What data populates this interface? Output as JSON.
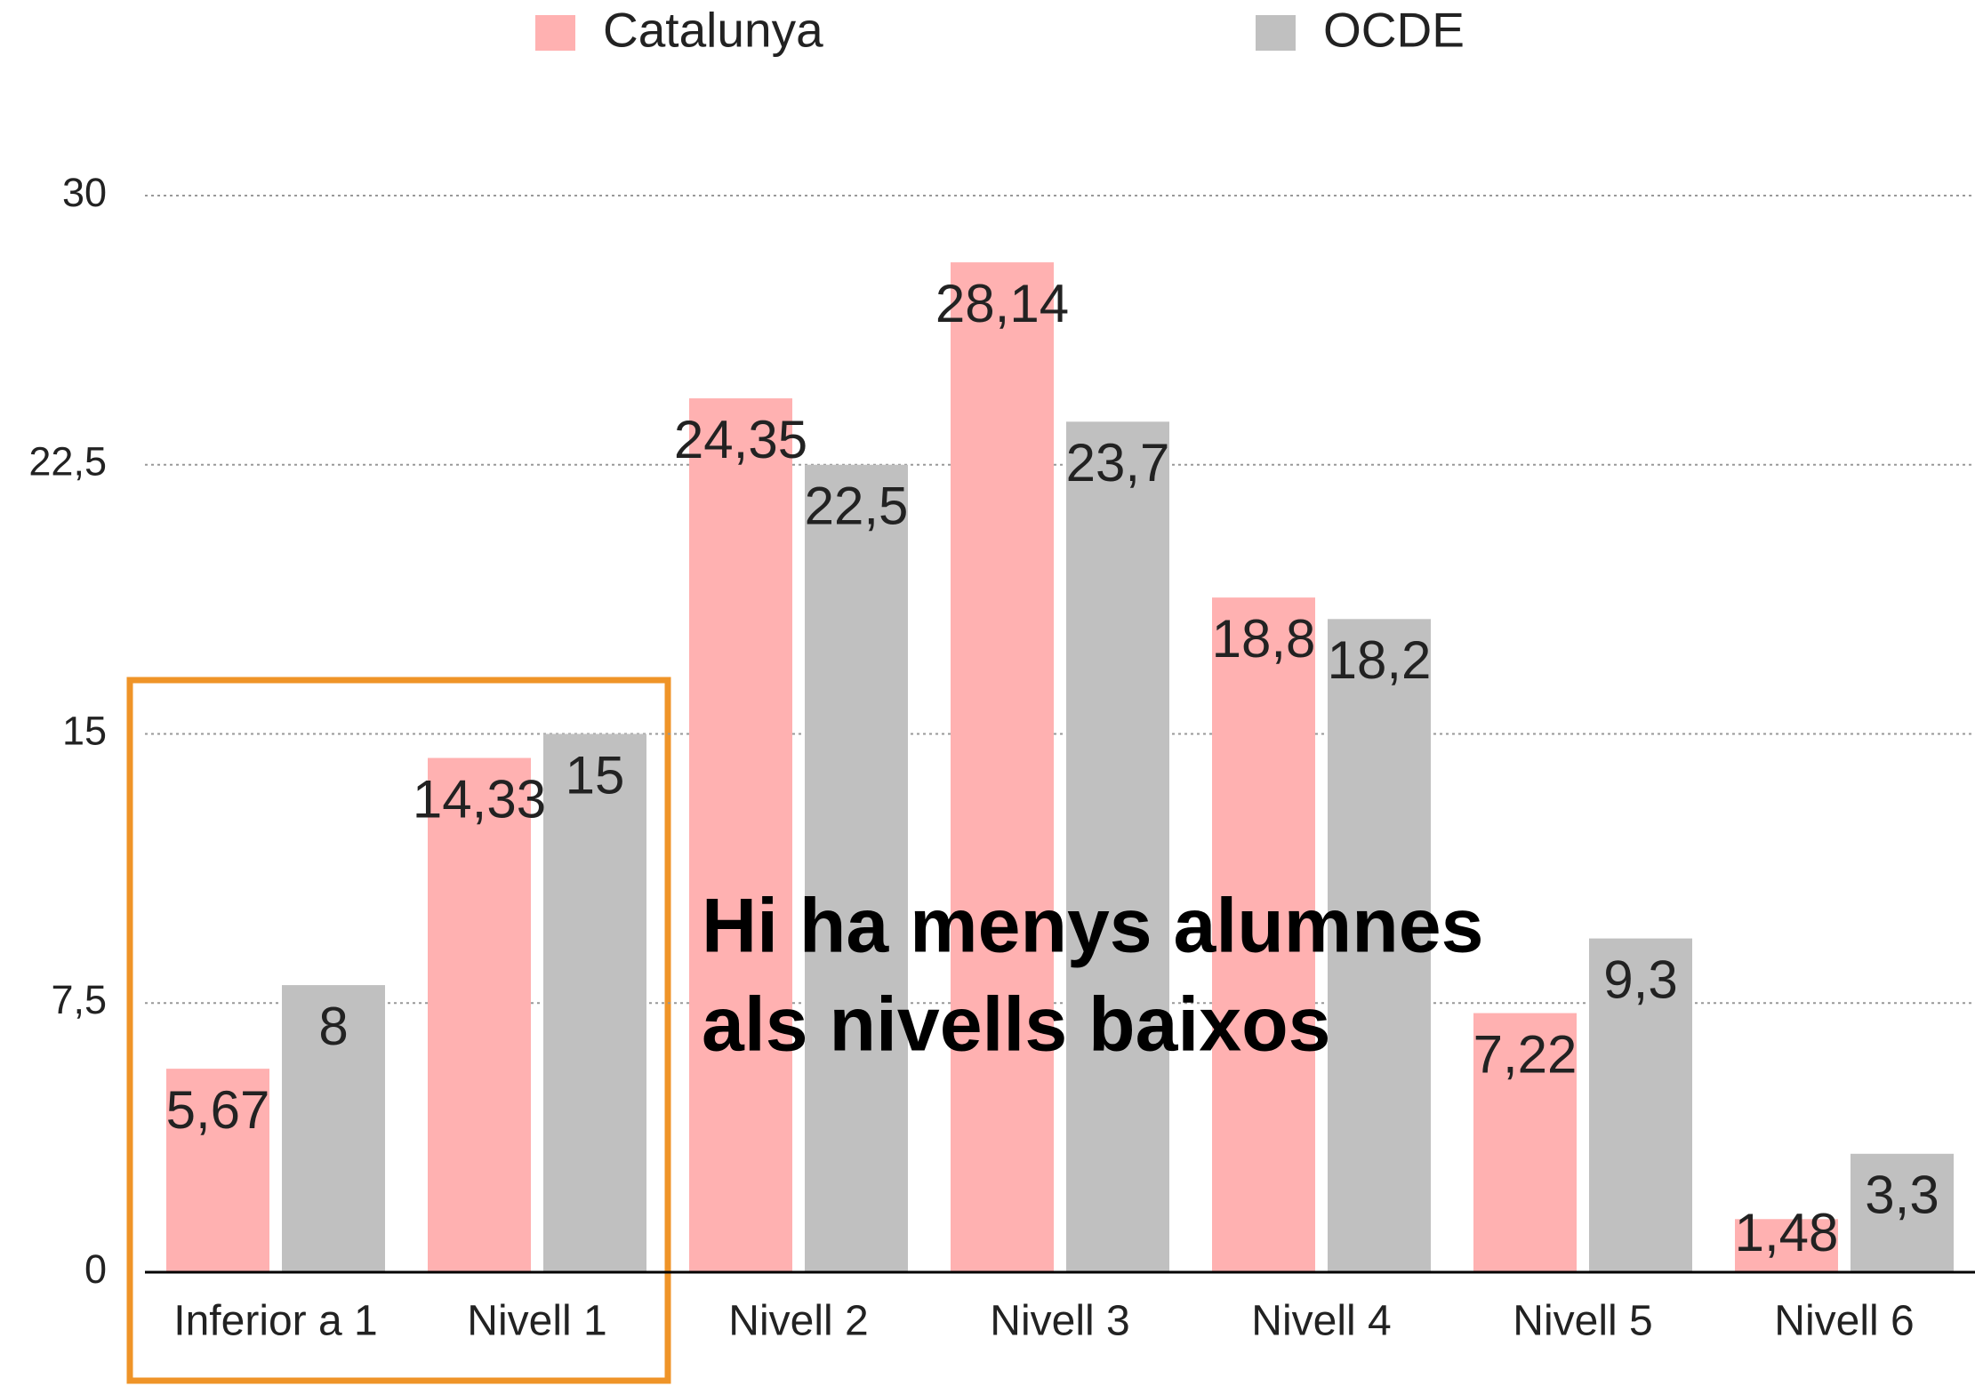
{
  "chart_data": {
    "type": "bar",
    "categories": [
      "Inferior a 1",
      "Nivell 1",
      "Nivell 2",
      "Nivell 3",
      "Nivell 4",
      "Nivell 5",
      "Nivell 6"
    ],
    "series": [
      {
        "name": "Catalunya",
        "color": "#ffb1b1",
        "values": [
          5.67,
          14.33,
          24.35,
          28.14,
          18.8,
          7.22,
          1.48
        ],
        "value_labels": [
          "5,67",
          "14,33",
          "24,35",
          "28,14",
          "18,8",
          "7,22",
          "1,48"
        ]
      },
      {
        "name": "OCDE",
        "color": "#c0c0c0",
        "values": [
          8,
          15,
          22.5,
          23.7,
          18.2,
          9.3,
          3.3
        ],
        "value_labels": [
          "8",
          "15",
          "22,5",
          "23,7",
          "18,2",
          "9,3",
          "3,3"
        ]
      }
    ],
    "ylim": [
      0,
      30
    ],
    "yticks": [
      0,
      {
        "value": 7.5,
        "label": "7,5"
      },
      15,
      {
        "value": 22.5,
        "label": "22,5"
      },
      30
    ],
    "grid": true,
    "legend": "top",
    "annotation": [
      "Hi ha menys alumnes",
      "als nivells baixos"
    ]
  }
}
